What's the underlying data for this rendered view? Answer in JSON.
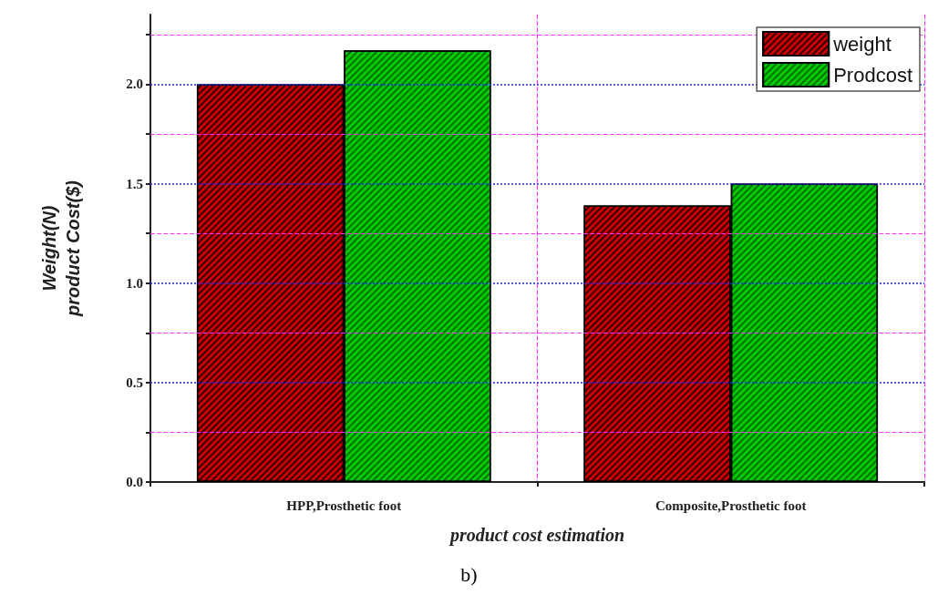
{
  "chart_data": {
    "type": "bar",
    "categories": [
      "HPP,Prosthetic foot",
      "Composite,Prosthetic foot"
    ],
    "series": [
      {
        "name": "weight",
        "color": "#cc0000",
        "values": [
          2.0,
          1.39
        ]
      },
      {
        "name": "Prodcost",
        "color": "#00cc00",
        "values": [
          2.17,
          1.5
        ]
      }
    ],
    "xlabel": "product cost estimation",
    "ylabel": "Weight(N)\nproduct Cost($)",
    "annotations": [
      "b)"
    ],
    "ylim": [
      0,
      2.35
    ],
    "yticks": [
      {
        "value": 0,
        "label": "0.0"
      },
      {
        "value": 0.25,
        "label": null
      },
      {
        "value": 0.5,
        "label": "0.5"
      },
      {
        "value": 0.75,
        "label": null
      },
      {
        "value": 1,
        "label": "1.0"
      },
      {
        "value": 1.25,
        "label": null
      },
      {
        "value": 1.5,
        "label": "1.5"
      },
      {
        "value": 1.75,
        "label": null
      },
      {
        "value": 2,
        "label": "2.0"
      },
      {
        "value": 2.25,
        "label": null
      }
    ],
    "grid": true,
    "legend": "top right"
  }
}
